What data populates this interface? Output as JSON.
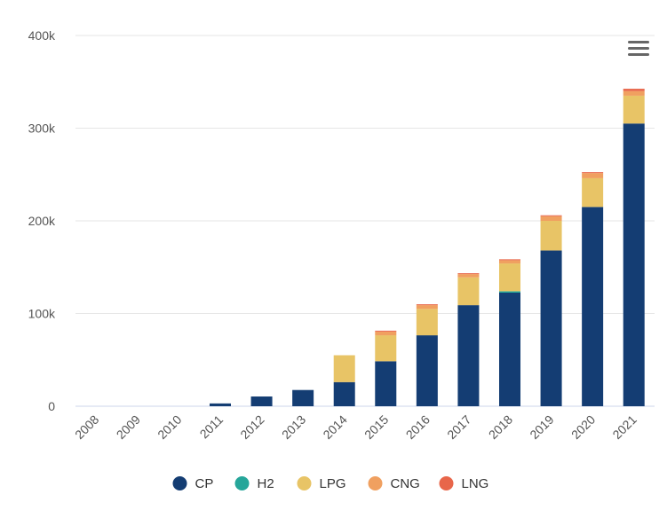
{
  "colors": {
    "CP": "#143d73",
    "H2": "#26a69a",
    "LPG": "#e8c466",
    "CNG": "#f0a060",
    "LNG": "#e8664a",
    "grid": "#e6e6e6",
    "axis": "#ccd6eb",
    "menu": "#666666"
  },
  "menu": {
    "icon": "hamburger-menu-icon"
  },
  "chart_data": {
    "type": "bar",
    "stacked": true,
    "title": "",
    "xlabel": "",
    "ylabel": "",
    "ylim": [
      0,
      400000
    ],
    "y_ticks": [
      0,
      100000,
      200000,
      300000,
      400000
    ],
    "y_tick_labels": [
      "0",
      "100k",
      "200k",
      "300k",
      "400k"
    ],
    "grid": true,
    "legend_position": "bottom",
    "categories": [
      "2008",
      "2009",
      "2010",
      "2011",
      "2012",
      "2013",
      "2014",
      "2015",
      "2016",
      "2017",
      "2018",
      "2019",
      "2020",
      "2021"
    ],
    "series": [
      {
        "name": "CP",
        "values": [
          0,
          0,
          0,
          3000,
          10500,
          17500,
          26000,
          48500,
          76500,
          109000,
          122500,
          168000,
          215000,
          305000
        ]
      },
      {
        "name": "H2",
        "values": [
          0,
          0,
          0,
          0,
          0,
          0,
          0,
          0,
          0,
          0,
          1500,
          0,
          0,
          0
        ]
      },
      {
        "name": "LPG",
        "values": [
          0,
          0,
          0,
          0,
          0,
          0,
          29000,
          28000,
          28500,
          30000,
          30000,
          32000,
          31000,
          30000
        ]
      },
      {
        "name": "CNG",
        "values": [
          0,
          0,
          0,
          0,
          0,
          0,
          0,
          4000,
          4000,
          3500,
          3500,
          5000,
          5500,
          5000
        ]
      },
      {
        "name": "LNG",
        "values": [
          0,
          0,
          0,
          0,
          0,
          0,
          0,
          1000,
          1000,
          1000,
          1000,
          1000,
          1000,
          2500
        ]
      }
    ]
  }
}
